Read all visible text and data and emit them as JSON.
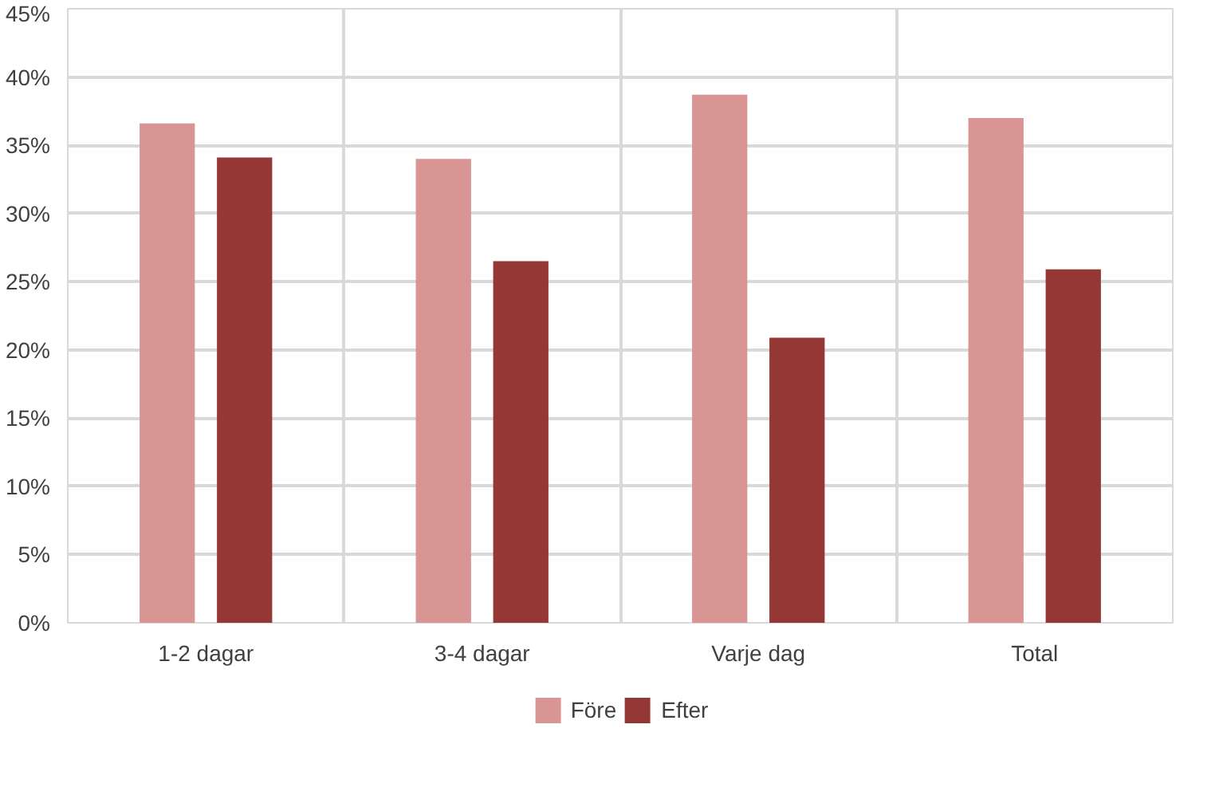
{
  "chart_data": {
    "type": "bar",
    "categories": [
      "1-2 dagar",
      "3-4 dagar",
      "Varje dag",
      "Total"
    ],
    "series": [
      {
        "name": "Före",
        "color": "#d99594",
        "values": [
          36.6,
          34.0,
          38.7,
          37.0
        ]
      },
      {
        "name": "Efter",
        "color": "#953735",
        "values": [
          34.1,
          26.5,
          20.9,
          25.9
        ]
      }
    ],
    "ylim": [
      0,
      45
    ],
    "yticks": [
      {
        "value": 0,
        "label": "0%"
      },
      {
        "value": 5,
        "label": "5%"
      },
      {
        "value": 10,
        "label": "10%"
      },
      {
        "value": 15,
        "label": "15%"
      },
      {
        "value": 20,
        "label": "20%"
      },
      {
        "value": 25,
        "label": "25%"
      },
      {
        "value": 30,
        "label": "30%"
      },
      {
        "value": 35,
        "label": "35%"
      },
      {
        "value": 40,
        "label": "40%"
      },
      {
        "value": 45,
        "label": "45%"
      }
    ],
    "grid": true,
    "legend": "bottom"
  }
}
